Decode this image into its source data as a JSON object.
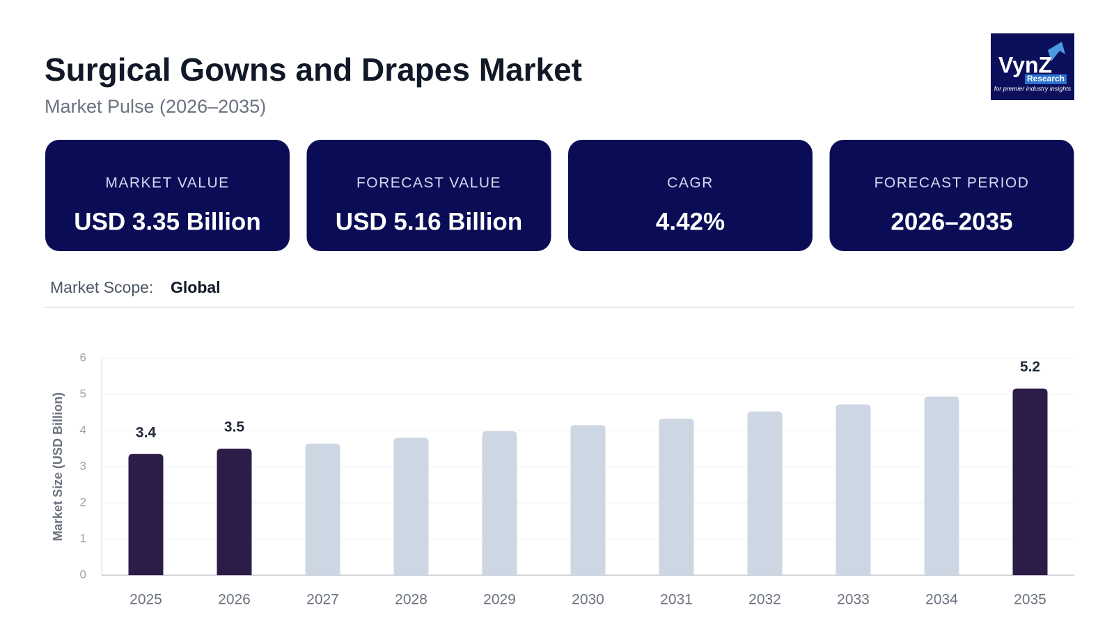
{
  "header": {
    "title": "Surgical Gowns and Drapes Market",
    "subtitle": "Market Pulse (2026–2035)"
  },
  "logo": {
    "name": "VynZ",
    "sub": "Research",
    "tagline": "for premier industry insights"
  },
  "cards": [
    {
      "label": "MARKET VALUE",
      "value": "USD 3.35 Billion"
    },
    {
      "label": "FORECAST VALUE",
      "value": "USD 5.16 Billion"
    },
    {
      "label": "CAGR",
      "value": "4.42%"
    },
    {
      "label": "FORECAST PERIOD",
      "value": "2026–2035"
    }
  ],
  "scope": {
    "label": "Market Scope:",
    "value": "Global"
  },
  "chart_data": {
    "type": "bar",
    "y_label": "Market Size (USD Billion)",
    "categories": [
      "2025",
      "2026",
      "2027",
      "2028",
      "2029",
      "2030",
      "2031",
      "2032",
      "2033",
      "2034",
      "2035"
    ],
    "values": [
      3.35,
      3.5,
      3.64,
      3.8,
      3.98,
      4.15,
      4.33,
      4.53,
      4.72,
      4.94,
      5.16
    ],
    "value_labels": [
      "3.4",
      "3.5",
      null,
      null,
      null,
      null,
      null,
      null,
      null,
      null,
      "5.2"
    ],
    "colors": [
      "#2c1c48",
      "#2c1c48",
      "#cdd7e3",
      "#cdd7e3",
      "#cdd7e3",
      "#cdd7e3",
      "#cdd7e3",
      "#cdd7e3",
      "#cdd7e3",
      "#cdd7e3",
      "#2c1c48"
    ],
    "ylim": [
      0,
      6
    ],
    "yticks": [
      0,
      1,
      2,
      3,
      4,
      5,
      6
    ],
    "grid": true
  }
}
